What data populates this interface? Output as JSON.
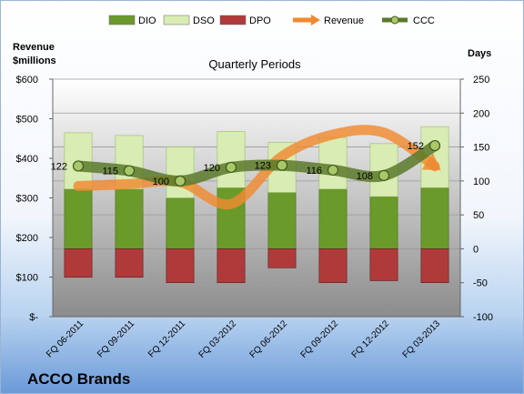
{
  "chart_data": {
    "type": "bar",
    "title": "Quarterly Periods",
    "company": "ACCO Brands",
    "left_axis_label_line1": "Revenue",
    "left_axis_label_line2": "$millions",
    "right_axis_label": "Days",
    "categories": [
      "FQ 06-2011",
      "FQ 09-2011",
      "FQ 12-2011",
      "FQ 03-2012",
      "FQ 06-2012",
      "FQ 09-2012",
      "FQ 12-2012",
      "FQ 03-2013"
    ],
    "left_axis": {
      "ylim": [
        0,
        600
      ],
      "ticks": [
        0,
        100,
        200,
        300,
        400,
        500,
        600
      ],
      "tick_labels": [
        "$-",
        "$100",
        "$200",
        "$300",
        "$400",
        "$500",
        "$600"
      ]
    },
    "right_axis": {
      "ylim": [
        -100,
        250
      ],
      "ticks": [
        -100,
        -50,
        0,
        50,
        100,
        150,
        200,
        250
      ],
      "tick_labels": [
        "-100",
        "-50",
        "0",
        "50",
        "100",
        "150",
        "200",
        "250"
      ]
    },
    "series": [
      {
        "name": "DIO",
        "axis": "right",
        "color": "#6a9a2a",
        "values": [
          88,
          88,
          75,
          90,
          83,
          88,
          77,
          90
        ]
      },
      {
        "name": "DSO",
        "axis": "right",
        "color": "#d9ecb4",
        "values": [
          83,
          79,
          75,
          83,
          74,
          76,
          78,
          90
        ]
      },
      {
        "name": "DPO",
        "axis": "right",
        "color": "#b03a3a",
        "values": [
          -42,
          -42,
          -50,
          -50,
          -28,
          -50,
          -47,
          -50
        ]
      },
      {
        "name": "Revenue",
        "axis": "left",
        "color": "#f08a30",
        "values": [
          330,
          335,
          340,
          285,
          405,
          460,
          465,
          380
        ]
      },
      {
        "name": "CCC",
        "axis": "right",
        "color": "#5a7a2a",
        "values": [
          122,
          115,
          100,
          120,
          123,
          116,
          108,
          152
        ]
      }
    ],
    "ccc_labels": [
      "122",
      "115",
      "100",
      "120",
      "123",
      "116",
      "108",
      "152"
    ],
    "legend_position": "top",
    "grid": true
  }
}
